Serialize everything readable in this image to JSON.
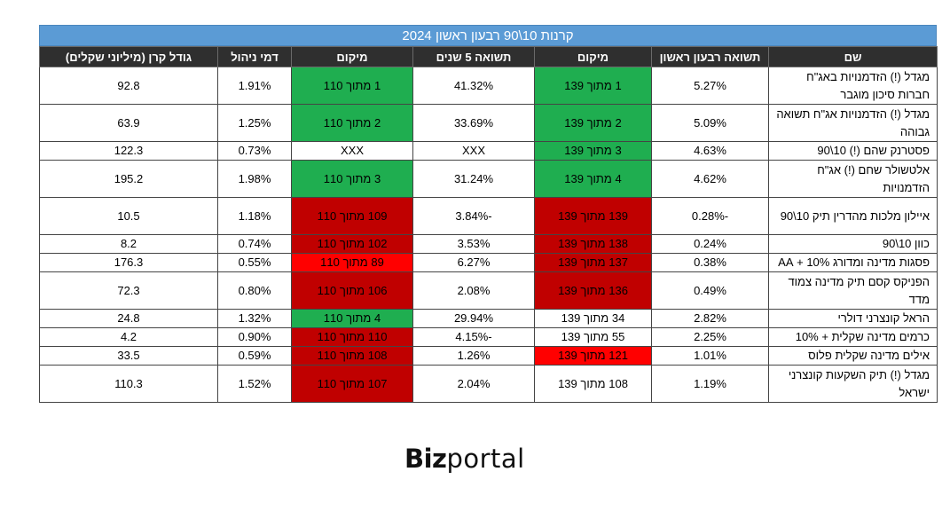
{
  "title": "קרנות 10\\90 רבעון ראשון 2024",
  "columns": [
    "שם",
    "תשואה רבעון ראשון",
    "מיקום",
    "תשואה 5 שנים",
    "מיקום",
    "דמי ניהול",
    "גודל קרן (מיליוני שקלים)"
  ],
  "colors": {
    "title_bg": "#5b9bd5",
    "header_bg": "#2f2f2f",
    "green": "#1fae50",
    "red": "#c00000",
    "bright_red": "#ff0000"
  },
  "rows": [
    {
      "name": "מגדל (!) הזדמנויות באג\"ח חברות סיכון מוגבר",
      "q1": "5.27%",
      "rank_q1": "1 מתוך 139",
      "rank_q1_color": "green",
      "y5": "41.32%",
      "rank_y5": "1 מתוך 110",
      "rank_y5_color": "green",
      "fee": "1.91%",
      "size": "92.8"
    },
    {
      "name": "מגדל (!) הזדמנויות אג\"ח תשואה גבוהה",
      "q1": "5.09%",
      "rank_q1": "2 מתוך 139",
      "rank_q1_color": "green",
      "y5": "33.69%",
      "rank_y5": "2 מתוך 110",
      "rank_y5_color": "green",
      "fee": "1.25%",
      "size": "63.9"
    },
    {
      "name": "פסטרנק שהם (!) 10\\90",
      "q1": "4.63%",
      "rank_q1": "3 מתוך 139",
      "rank_q1_color": "green",
      "y5": "XXX",
      "rank_y5": "XXX",
      "rank_y5_color": "none",
      "fee": "0.73%",
      "size": "122.3"
    },
    {
      "name": "אלטשולר שחם (!) אג\"ח הזדמנויות",
      "q1": "4.62%",
      "rank_q1": "4 מתוך 139",
      "rank_q1_color": "green",
      "y5": "31.24%",
      "rank_y5": "3 מתוך 110",
      "rank_y5_color": "green",
      "fee": "1.98%",
      "size": "195.2"
    },
    {
      "name": "איילון מלכות מהדרין תיק 10\\90",
      "q1": "-0.28%",
      "rank_q1": "139 מתוך 139",
      "rank_q1_color": "red",
      "y5": "-3.84%",
      "rank_y5": "109 מתוך 110",
      "rank_y5_color": "red",
      "fee": "1.18%",
      "size": "10.5"
    },
    {
      "name": "כוון 10\\90",
      "q1": "0.24%",
      "rank_q1": "138 מתוך 139",
      "rank_q1_color": "red",
      "y5": "3.53%",
      "rank_y5": "102 מתוך 110",
      "rank_y5_color": "red",
      "fee": "0.74%",
      "size": "8.2"
    },
    {
      "name": "פסגות מדינה ומדורג 10% + AA",
      "q1": "0.38%",
      "rank_q1": "137 מתוך 139",
      "rank_q1_color": "red",
      "y5": "6.27%",
      "rank_y5": "89 מתוך 110",
      "rank_y5_color": "bright_red",
      "fee": "0.55%",
      "size": "176.3"
    },
    {
      "name": "הפניקס קסם תיק מדינה צמוד מדד",
      "q1": "0.49%",
      "rank_q1": "136 מתוך 139",
      "rank_q1_color": "red",
      "y5": "2.08%",
      "rank_y5": "106 מתוך 110",
      "rank_y5_color": "red",
      "fee": "0.80%",
      "size": "72.3"
    },
    {
      "name": "הראל קונצרני דולרי",
      "q1": "2.82%",
      "rank_q1": "34 מתוך 139",
      "rank_q1_color": "none",
      "y5": "29.94%",
      "rank_y5": "4 מתוך 110",
      "rank_y5_color": "green",
      "fee": "1.32%",
      "size": "24.8"
    },
    {
      "name": "כרמים מדינה שקלית + 10%",
      "q1": "2.25%",
      "rank_q1": "55 מתוך 139",
      "rank_q1_color": "none",
      "y5": "-4.15%",
      "rank_y5": "110 מתוך 110",
      "rank_y5_color": "red",
      "fee": "0.90%",
      "size": "4.2"
    },
    {
      "name": "אילים מדינה שקלית פלוס",
      "q1": "1.01%",
      "rank_q1": "121 מתוך 139",
      "rank_q1_color": "bright_red",
      "y5": "1.26%",
      "rank_y5": "108 מתוך 110",
      "rank_y5_color": "red",
      "fee": "0.59%",
      "size": "33.5"
    },
    {
      "name": "מגדל (!) תיק השקעות קונצרני ישראל",
      "q1": "1.19%",
      "rank_q1": "108 מתוך 139",
      "rank_q1_color": "none",
      "y5": "2.04%",
      "rank_y5": "107 מתוך 110",
      "rank_y5_color": "red",
      "fee": "1.52%",
      "size": "110.3"
    }
  ],
  "logo": {
    "bold": "Biz",
    "light": "portal"
  }
}
